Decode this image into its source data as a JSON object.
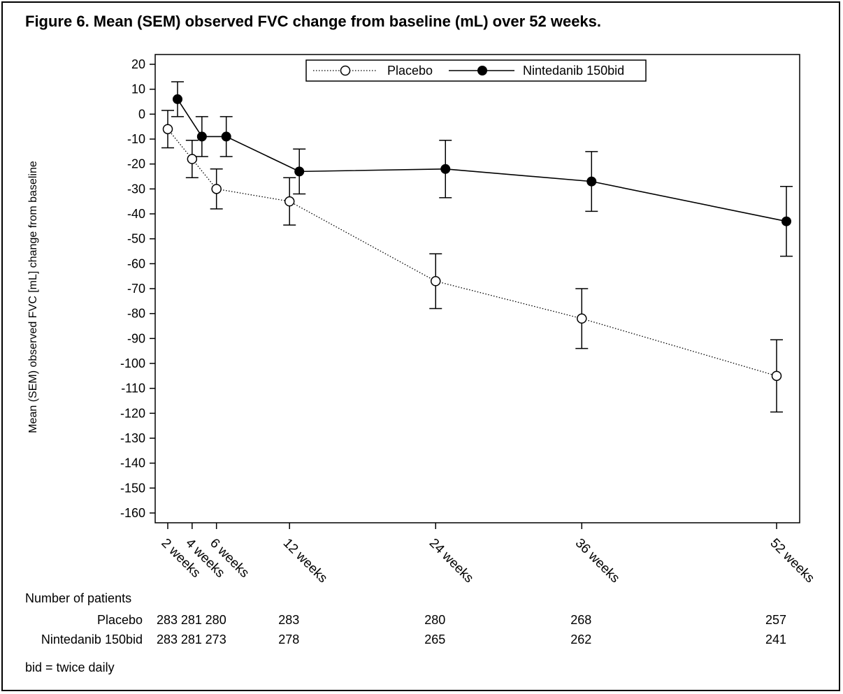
{
  "figure": {
    "title": "Figure 6. Mean (SEM) observed FVC change from baseline (mL) over 52 weeks.",
    "footnote": "bid = twice daily"
  },
  "chart_data": {
    "type": "line",
    "title": "Figure 6. Mean (SEM) observed FVC change from baseline (mL) over 52 weeks.",
    "xlabel": "",
    "ylabel": "Mean (SEM) observed FVC [mL] change from baseline",
    "ylim": [
      -160,
      20
    ],
    "yticks": [
      20,
      10,
      0,
      -10,
      -20,
      -30,
      -40,
      -50,
      -60,
      -70,
      -80,
      -90,
      -100,
      -110,
      -120,
      -130,
      -140,
      -150,
      -160
    ],
    "x_weeks": [
      2,
      4,
      6,
      12,
      24,
      36,
      52
    ],
    "x_labels": [
      "2 weeks",
      "4 weeks",
      "6 weeks",
      "12 weeks",
      "24 weeks",
      "36 weeks",
      "52 weeks"
    ],
    "legend_position": "top-center",
    "grid": false,
    "series": [
      {
        "name": "Placebo",
        "style": "dotted",
        "marker": "open-circle",
        "color": "#000000",
        "values": [
          -6,
          -18,
          -30,
          -35,
          -67,
          -82,
          -105
        ],
        "sem": [
          7.5,
          7.5,
          8,
          9.5,
          11,
          12,
          14.5
        ]
      },
      {
        "name": "Nintedanib 150bid",
        "style": "solid",
        "marker": "filled-circle",
        "color": "#000000",
        "values": [
          6,
          -9,
          -9,
          -23,
          -22,
          -27,
          -43
        ],
        "sem": [
          7,
          8,
          8,
          9,
          11.5,
          12,
          14
        ]
      }
    ]
  },
  "patients_table": {
    "heading": "Number of patients",
    "rows": [
      {
        "label": "Placebo",
        "counts": [
          "283",
          "281",
          "280",
          "283",
          "280",
          "268",
          "257"
        ]
      },
      {
        "label": "Nintedanib 150bid",
        "counts": [
          "283",
          "281",
          "273",
          "278",
          "265",
          "262",
          "241"
        ]
      }
    ]
  }
}
